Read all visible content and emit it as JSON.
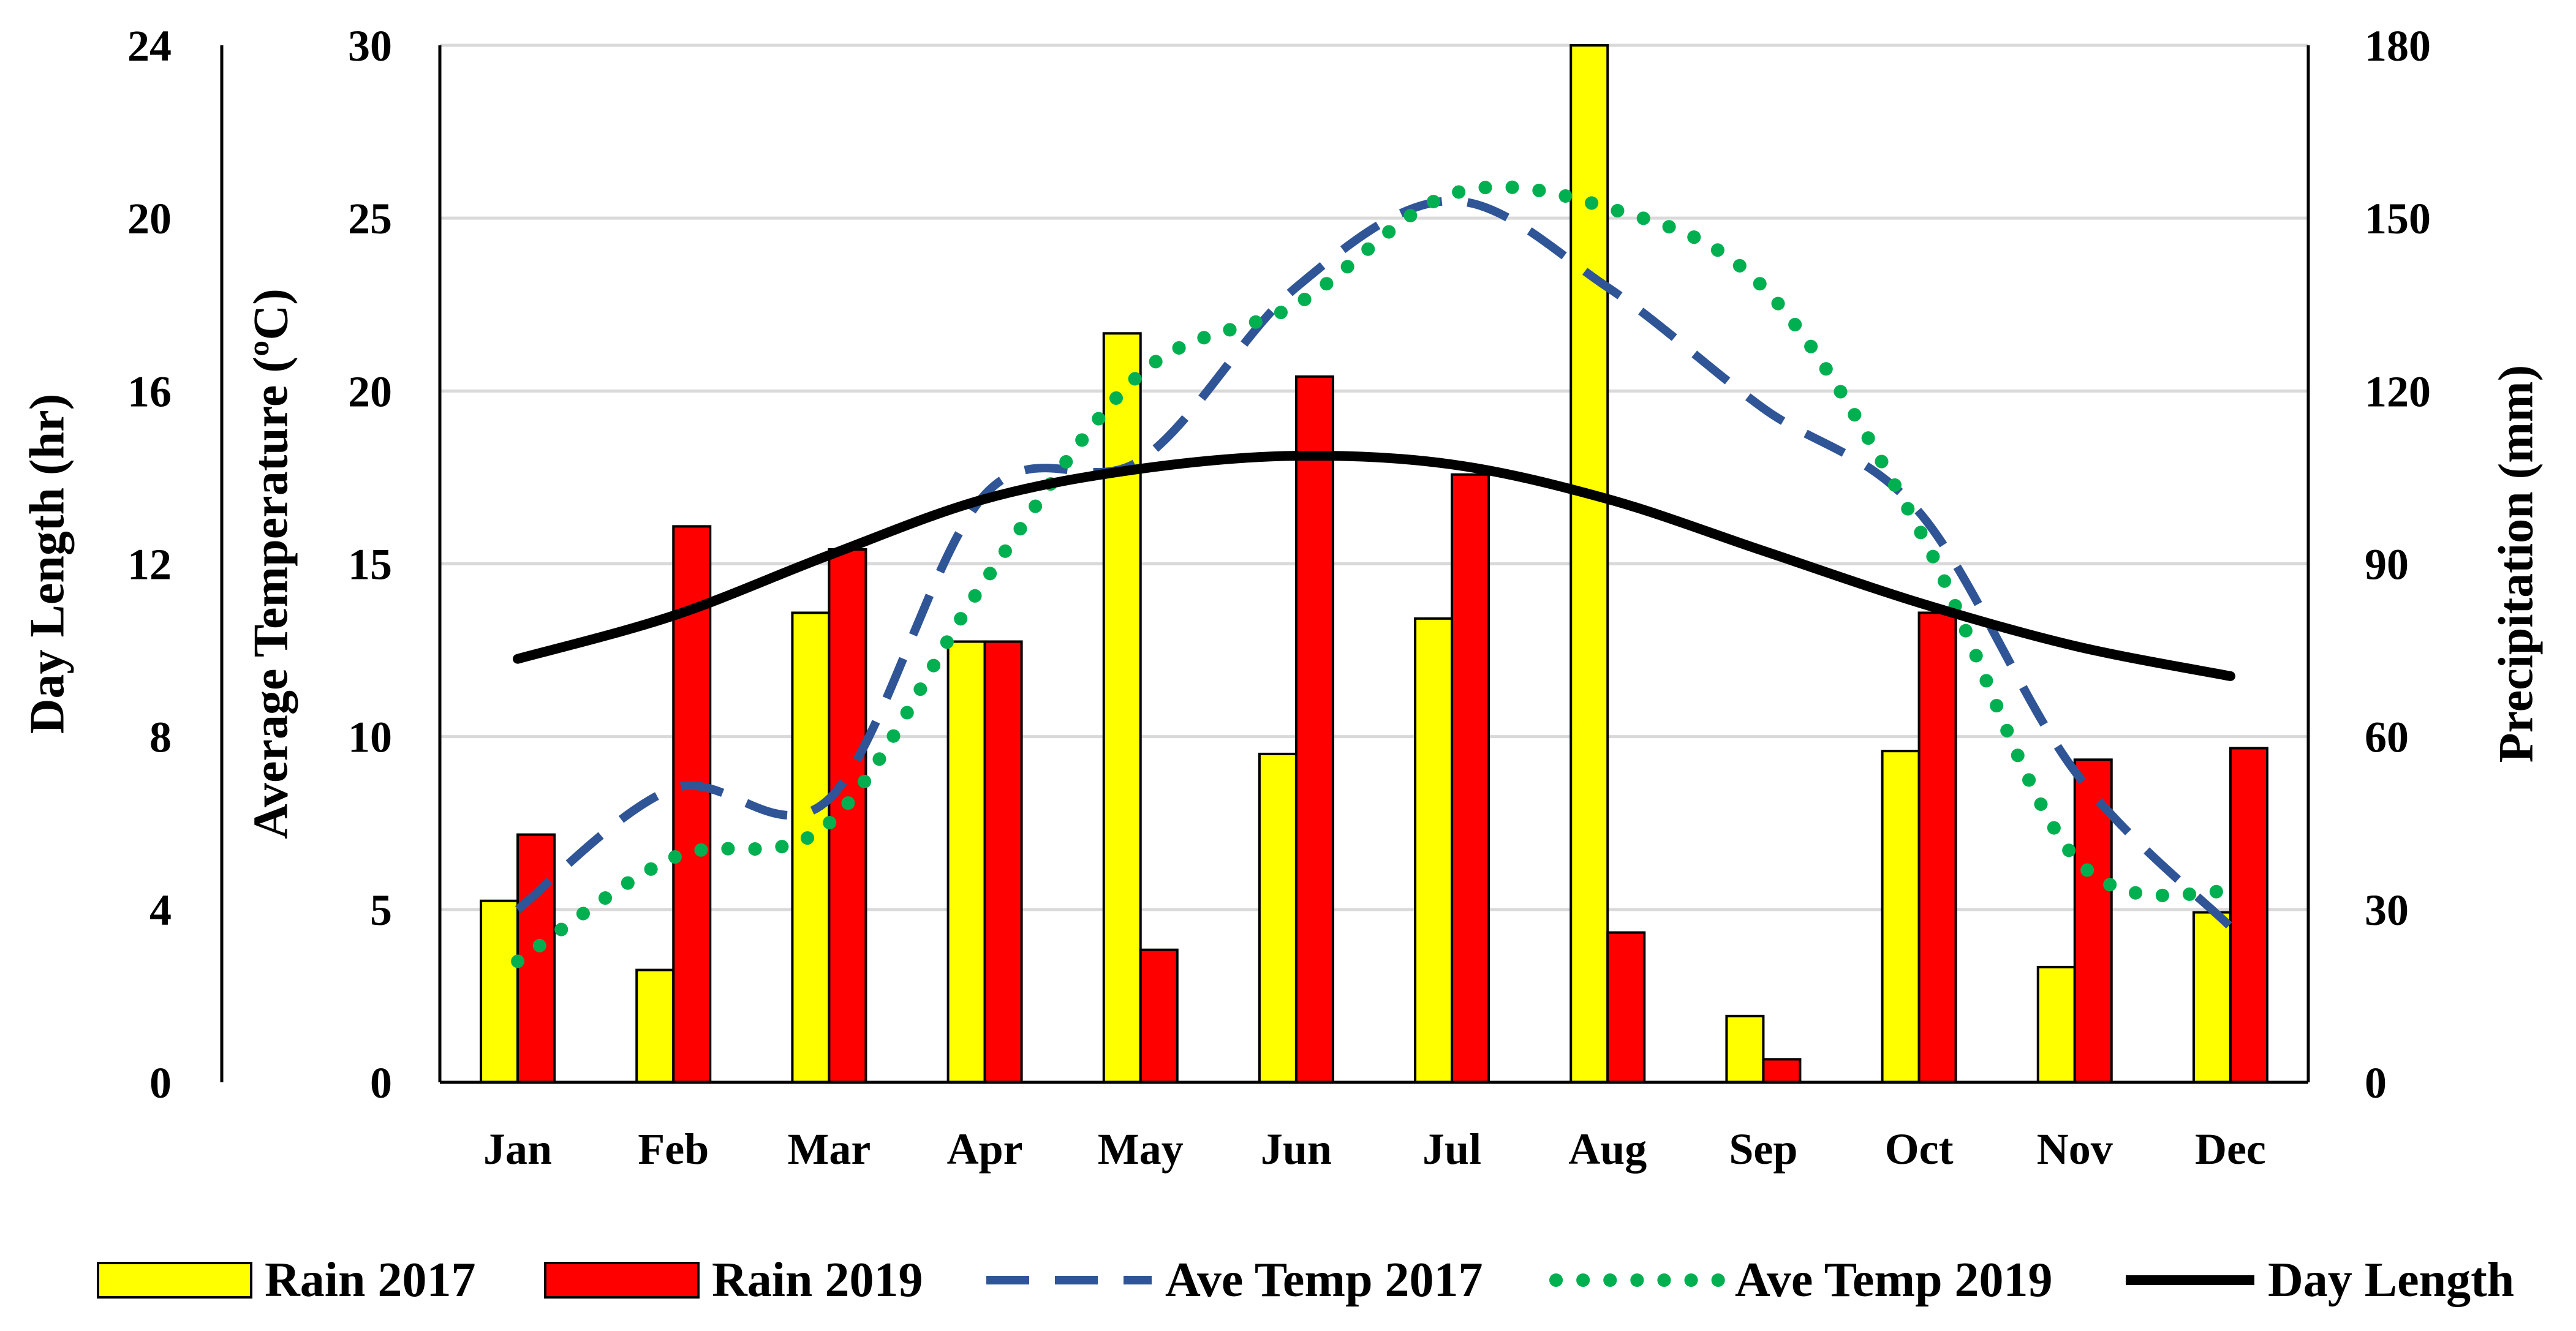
{
  "chart_data": {
    "type": "combo-bar-line",
    "categories": [
      "Jan",
      "Feb",
      "Mar",
      "Apr",
      "May",
      "Jun",
      "Jul",
      "Aug",
      "Sep",
      "Oct",
      "Nov",
      "Dec"
    ],
    "axes": {
      "day_length": {
        "title": "Day Length (hr)",
        "range": [
          0,
          24
        ],
        "ticks": [
          "0",
          "4",
          "8",
          "12",
          "16",
          "20",
          "24"
        ]
      },
      "temperature": {
        "title": "Average Temperature (ºC)",
        "range": [
          0,
          30
        ],
        "ticks": [
          "0",
          "5",
          "10",
          "15",
          "20",
          "25",
          "30"
        ]
      },
      "precipitation": {
        "title": "Precipitation (mm)",
        "range": [
          0,
          180
        ],
        "ticks": [
          "0",
          "30",
          "60",
          "90",
          "120",
          "150",
          "180"
        ]
      }
    },
    "grid": true,
    "legend_position": "bottom",
    "series": [
      {
        "name": "Rain 2017",
        "kind": "bar",
        "axis": "precipitation",
        "color": "#FFFF00",
        "values": [
          31.5,
          19.5,
          81.5,
          76.5,
          130,
          57,
          80.5,
          180,
          11.5,
          57.5,
          20,
          29.5
        ]
      },
      {
        "name": "Rain 2019",
        "kind": "bar",
        "axis": "precipitation",
        "color": "#FF0000",
        "values": [
          43,
          96.5,
          92.5,
          76.5,
          23,
          122.5,
          105.5,
          26,
          4,
          81.5,
          56,
          58
        ]
      },
      {
        "name": "Ave Temp 2017",
        "kind": "line",
        "style": "dashed",
        "axis": "temperature",
        "color": "#2F5597",
        "values": [
          5,
          8.5,
          8.2,
          17,
          18,
          23,
          25.5,
          23,
          19.5,
          16.5,
          9,
          4.5
        ]
      },
      {
        "name": "Ave Temp 2019",
        "kind": "line",
        "style": "dotted",
        "axis": "temperature",
        "color": "#00B050",
        "values": [
          3.5,
          6.5,
          7.5,
          14.5,
          20.5,
          22.5,
          25.7,
          25.3,
          23,
          16,
          6.5,
          5.5
        ]
      },
      {
        "name": "Day Length",
        "kind": "line",
        "style": "solid",
        "axis": "day_length",
        "color": "#000000",
        "values": [
          9.8,
          10.8,
          12.2,
          13.5,
          14.2,
          14.5,
          14.3,
          13.5,
          12.3,
          11.1,
          10.1,
          9.4
        ]
      }
    ]
  }
}
